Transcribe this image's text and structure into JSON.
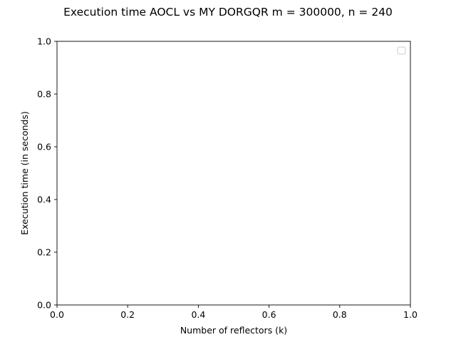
{
  "chart_data": {
    "type": "line",
    "title": "Execution time AOCL vs MY DORGQR m = 300000, n = 240",
    "xlabel": "Number of reflectors (k)",
    "ylabel": "Execution time (in seconds)",
    "xlim": [
      0.0,
      1.0
    ],
    "ylim": [
      0.0,
      1.0
    ],
    "xticks": [
      "0.0",
      "0.2",
      "0.4",
      "0.6",
      "0.8",
      "1.0"
    ],
    "yticks": [
      "0.0",
      "0.2",
      "0.4",
      "0.6",
      "0.8",
      "1.0"
    ],
    "series": [],
    "legend": {
      "placement": "top-right",
      "entries": []
    },
    "grid": false
  }
}
